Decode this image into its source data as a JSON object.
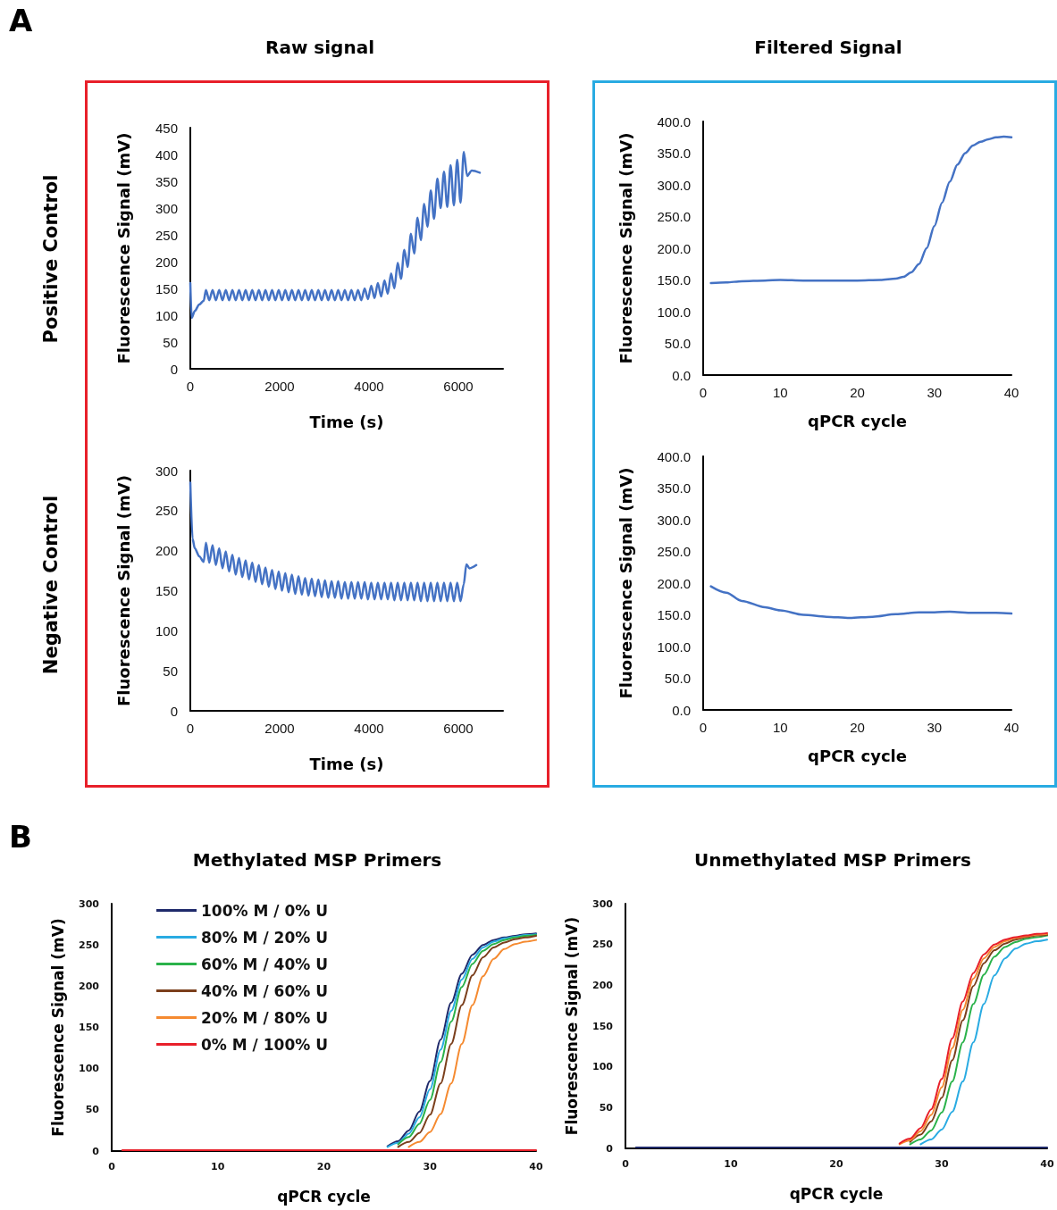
{
  "chart_data": [
    {
      "type": "line",
      "title": "Raw signal",
      "xlabel": "Time (s)",
      "ylabel": "Fluorescence Signal (mV)",
      "annotations": [
        "A",
        "Positive Control"
      ],
      "xlim": [
        0,
        7000
      ],
      "xticks": [
        0,
        2000,
        4000,
        6000
      ],
      "ylim": [
        0,
        450
      ],
      "yticks": [
        0,
        50,
        100,
        150,
        200,
        250,
        300,
        350,
        400,
        450
      ],
      "x": [
        0,
        30,
        100,
        200,
        300,
        350,
        424,
        498,
        572,
        646,
        720,
        794,
        868,
        942,
        1016,
        1090,
        1164,
        1238,
        1312,
        1386,
        1460,
        1534,
        1608,
        1682,
        1756,
        1830,
        1904,
        1978,
        2052,
        2126,
        2200,
        2274,
        2348,
        2422,
        2496,
        2570,
        2644,
        2718,
        2792,
        2866,
        2940,
        3014,
        3088,
        3162,
        3236,
        3310,
        3384,
        3458,
        3532,
        3606,
        3680,
        3754,
        3828,
        3902,
        3976,
        4050,
        4124,
        4198,
        4272,
        4346,
        4420,
        4494,
        4568,
        4642,
        4716,
        4790,
        4864,
        4938,
        5012,
        5086,
        5160,
        5234,
        5308,
        5382,
        5456,
        5530,
        5604,
        5678,
        5752,
        5826,
        5900,
        5974,
        6048,
        6122,
        6196,
        6300,
        6480
      ],
      "series": [
        {
          "color": "#4472c4",
          "values": [
            160,
            95,
            108,
            120,
            127,
            147,
            128,
            147,
            128,
            147,
            128,
            147,
            128,
            147,
            128,
            147,
            128,
            147,
            128,
            147,
            128,
            147,
            128,
            147,
            128,
            147,
            128,
            147,
            128,
            147,
            128,
            147,
            128,
            147,
            128,
            147,
            128,
            147,
            128,
            147,
            128,
            147,
            128,
            147,
            128,
            147,
            128,
            147,
            128,
            147,
            128,
            147,
            128,
            150,
            130,
            155,
            132,
            160,
            135,
            165,
            140,
            178,
            150,
            198,
            168,
            222,
            190,
            252,
            215,
            282,
            240,
            308,
            265,
            333,
            280,
            355,
            300,
            368,
            302,
            380,
            305,
            390,
            310,
            405,
            360,
            370,
            366
          ]
        }
      ]
    },
    {
      "type": "line",
      "title": "Filtered Signal",
      "xlabel": "qPCR cycle",
      "ylabel": "Fluorescence Signal (mV)",
      "xlim": [
        0,
        40
      ],
      "xticks": [
        0,
        10,
        20,
        30,
        40
      ],
      "ylim": [
        0,
        400
      ],
      "yticks": [
        {
          "value": 0,
          "label": "0.0"
        },
        {
          "value": 50,
          "label": "50.0"
        },
        {
          "value": 100,
          "label": "100.0"
        },
        {
          "value": 150,
          "label": "150.0"
        },
        {
          "value": 200,
          "label": "200.0"
        },
        {
          "value": 250,
          "label": "250.0"
        },
        {
          "value": 300,
          "label": "300.0"
        },
        {
          "value": 350,
          "label": "350.0"
        },
        {
          "value": 400,
          "label": "400.0"
        }
      ],
      "x": [
        1,
        3,
        5,
        8,
        10,
        13,
        16,
        20,
        23,
        25,
        26,
        27,
        28,
        29,
        30,
        31,
        32,
        33,
        34,
        35,
        36,
        37,
        38,
        39,
        40
      ],
      "series": [
        {
          "color": "#4472c4",
          "values": [
            145,
            146,
            148,
            149,
            150,
            149,
            149,
            149,
            150,
            152,
            155,
            162,
            175,
            200,
            235,
            272,
            305,
            332,
            350,
            362,
            368,
            372,
            375,
            376,
            375
          ]
        }
      ]
    },
    {
      "type": "line",
      "xlabel": "Time (s)",
      "ylabel": "Fluorescence Signal (mV)",
      "annotations": [
        "Negative Control"
      ],
      "xlim": [
        0,
        7000
      ],
      "xticks": [
        0,
        2000,
        4000,
        6000
      ],
      "ylim": [
        0,
        300
      ],
      "yticks": [
        0,
        50,
        100,
        150,
        200,
        250,
        300
      ],
      "x": [
        0,
        50,
        100,
        200,
        300,
        350,
        424,
        498,
        572,
        646,
        720,
        794,
        868,
        942,
        1016,
        1090,
        1164,
        1238,
        1312,
        1386,
        1460,
        1534,
        1608,
        1682,
        1756,
        1830,
        1904,
        1978,
        2052,
        2126,
        2200,
        2274,
        2348,
        2422,
        2496,
        2570,
        2644,
        2718,
        2792,
        2866,
        2940,
        3014,
        3088,
        3162,
        3236,
        3310,
        3384,
        3458,
        3532,
        3606,
        3680,
        3754,
        3828,
        3902,
        3976,
        4050,
        4124,
        4198,
        4272,
        4346,
        4420,
        4494,
        4568,
        4642,
        4716,
        4790,
        4864,
        4938,
        5012,
        5086,
        5160,
        5234,
        5308,
        5382,
        5456,
        5530,
        5604,
        5678,
        5752,
        5826,
        5900,
        5974,
        6048,
        6120,
        6180,
        6250,
        6400
      ],
      "series": [
        {
          "color": "#4472c4",
          "values": [
            285,
            215,
            203,
            193,
            186,
            210,
            185,
            207,
            182,
            203,
            178,
            199,
            174,
            195,
            170,
            191,
            167,
            188,
            164,
            185,
            161,
            182,
            158,
            179,
            155,
            176,
            152,
            174,
            150,
            172,
            148,
            170,
            146,
            168,
            145,
            166,
            144,
            165,
            143,
            164,
            142,
            163,
            141,
            162,
            141,
            162,
            140,
            161,
            140,
            161,
            140,
            161,
            140,
            161,
            139,
            160,
            139,
            160,
            139,
            160,
            139,
            160,
            138,
            160,
            138,
            160,
            138,
            160,
            138,
            160,
            137,
            160,
            137,
            160,
            137,
            160,
            137,
            160,
            137,
            160,
            137,
            160,
            137,
            158,
            183,
            178,
            182
          ]
        }
      ]
    },
    {
      "type": "line",
      "xlabel": "qPCR cycle",
      "ylabel": "Fluorescence Signal (mV)",
      "xlim": [
        0,
        40
      ],
      "xticks": [
        0,
        10,
        20,
        30,
        40
      ],
      "ylim": [
        0,
        400
      ],
      "yticks": [
        {
          "value": 0,
          "label": "0.0"
        },
        {
          "value": 50,
          "label": "50.0"
        },
        {
          "value": 100,
          "label": "100.0"
        },
        {
          "value": 150,
          "label": "150.0"
        },
        {
          "value": 200,
          "label": "200.0"
        },
        {
          "value": 250,
          "label": "250.0"
        },
        {
          "value": 300,
          "label": "300.0"
        },
        {
          "value": 350,
          "label": "350.0"
        },
        {
          "value": 400,
          "label": "400.0"
        }
      ],
      "x": [
        1,
        3,
        5,
        8,
        10,
        13,
        16,
        19,
        22,
        25,
        28,
        30,
        32,
        35,
        38,
        40
      ],
      "series": [
        {
          "color": "#4472c4",
          "values": [
            195,
            185,
            172,
            162,
            157,
            150,
            147,
            145,
            147,
            151,
            154,
            154,
            155,
            153,
            153,
            152
          ]
        }
      ]
    },
    {
      "type": "line",
      "title": "Methylated MSP Primers",
      "xlabel": "qPCR cycle",
      "ylabel": "Fluorescence Signal (mV)",
      "annotations": [
        "B"
      ],
      "legend": "top left",
      "xlim": [
        0,
        40
      ],
      "xticks": [
        0,
        10,
        20,
        30,
        40
      ],
      "ylim": [
        0,
        300
      ],
      "yticks": [
        0,
        50,
        100,
        150,
        200,
        250,
        300
      ],
      "x": [
        1,
        10,
        20,
        24,
        25,
        26,
        27,
        28,
        29,
        30,
        31,
        32,
        33,
        34,
        35,
        36,
        37,
        38,
        39,
        40
      ],
      "series": [
        {
          "name": "100% M / 0% U",
          "color": "#1f2a6b",
          "values": [
            null,
            null,
            null,
            null,
            null,
            6,
            12,
            25,
            48,
            85,
            135,
            180,
            215,
            238,
            250,
            256,
            259,
            261,
            263,
            264
          ]
        },
        {
          "name": "80% M / 20% U",
          "color": "#29abe2",
          "values": [
            null,
            null,
            null,
            null,
            null,
            5,
            10,
            21,
            41,
            75,
            123,
            170,
            208,
            233,
            247,
            254,
            258,
            260,
            262,
            263
          ]
        },
        {
          "name": "60% M / 40% U",
          "color": "#2ab24a",
          "values": [
            null,
            null,
            null,
            null,
            null,
            null,
            8,
            17,
            33,
            62,
            108,
            157,
            199,
            227,
            243,
            251,
            256,
            259,
            261,
            262
          ]
        },
        {
          "name": "40% M / 60% U",
          "color": "#7b3f1c",
          "values": [
            null,
            null,
            null,
            null,
            null,
            null,
            5,
            11,
            22,
            44,
            82,
            130,
            177,
            213,
            235,
            247,
            253,
            257,
            259,
            261
          ]
        },
        {
          "name": "20% M / 80% U",
          "color": "#f58a30",
          "values": [
            null,
            null,
            null,
            null,
            null,
            null,
            null,
            5,
            11,
            23,
            45,
            82,
            130,
            177,
            212,
            233,
            245,
            251,
            254,
            256
          ]
        },
        {
          "name": "0% M / 100% U",
          "color": "#e8202a",
          "values": [
            1,
            1,
            1,
            1,
            1,
            1,
            1,
            1,
            1,
            1,
            1,
            1,
            1,
            1,
            1,
            1,
            1,
            1,
            1,
            1
          ]
        }
      ]
    },
    {
      "type": "line",
      "title": "Unmethylated MSP Primers",
      "xlabel": "qPCR cycle",
      "ylabel": "Fluorescence Signal (mV)",
      "xlim": [
        0,
        40
      ],
      "xticks": [
        0,
        10,
        20,
        30,
        40
      ],
      "ylim": [
        0,
        300
      ],
      "yticks": [
        0,
        50,
        100,
        150,
        200,
        250,
        300
      ],
      "x": [
        1,
        10,
        20,
        24,
        25,
        26,
        27,
        28,
        29,
        30,
        31,
        32,
        33,
        34,
        35,
        36,
        37,
        38,
        39,
        40
      ],
      "series": [
        {
          "color": "#29abe2",
          "values": [
            null,
            null,
            null,
            null,
            null,
            null,
            null,
            5,
            11,
            23,
            45,
            82,
            130,
            177,
            212,
            233,
            245,
            251,
            254,
            256
          ]
        },
        {
          "color": "#2ab24a",
          "values": [
            null,
            null,
            null,
            null,
            null,
            null,
            5,
            11,
            22,
            44,
            82,
            130,
            177,
            213,
            235,
            247,
            253,
            257,
            259,
            261
          ]
        },
        {
          "color": "#7b3f1c",
          "values": [
            null,
            null,
            null,
            null,
            null,
            null,
            8,
            17,
            33,
            62,
            108,
            157,
            199,
            227,
            243,
            251,
            256,
            259,
            261,
            262
          ]
        },
        {
          "color": "#f58a30",
          "values": [
            null,
            null,
            null,
            null,
            null,
            5,
            10,
            21,
            41,
            75,
            123,
            170,
            208,
            233,
            247,
            254,
            258,
            260,
            262,
            263
          ]
        },
        {
          "color": "#e8202a",
          "values": [
            null,
            null,
            null,
            null,
            null,
            6,
            12,
            25,
            48,
            85,
            135,
            180,
            215,
            238,
            250,
            256,
            259,
            261,
            263,
            264
          ]
        },
        {
          "color": "#1f2a6b",
          "values": [
            1,
            1,
            1,
            1,
            1,
            1,
            1,
            1,
            1,
            1,
            1,
            1,
            1,
            1,
            1,
            1,
            1,
            1,
            1,
            1
          ]
        }
      ]
    }
  ]
}
